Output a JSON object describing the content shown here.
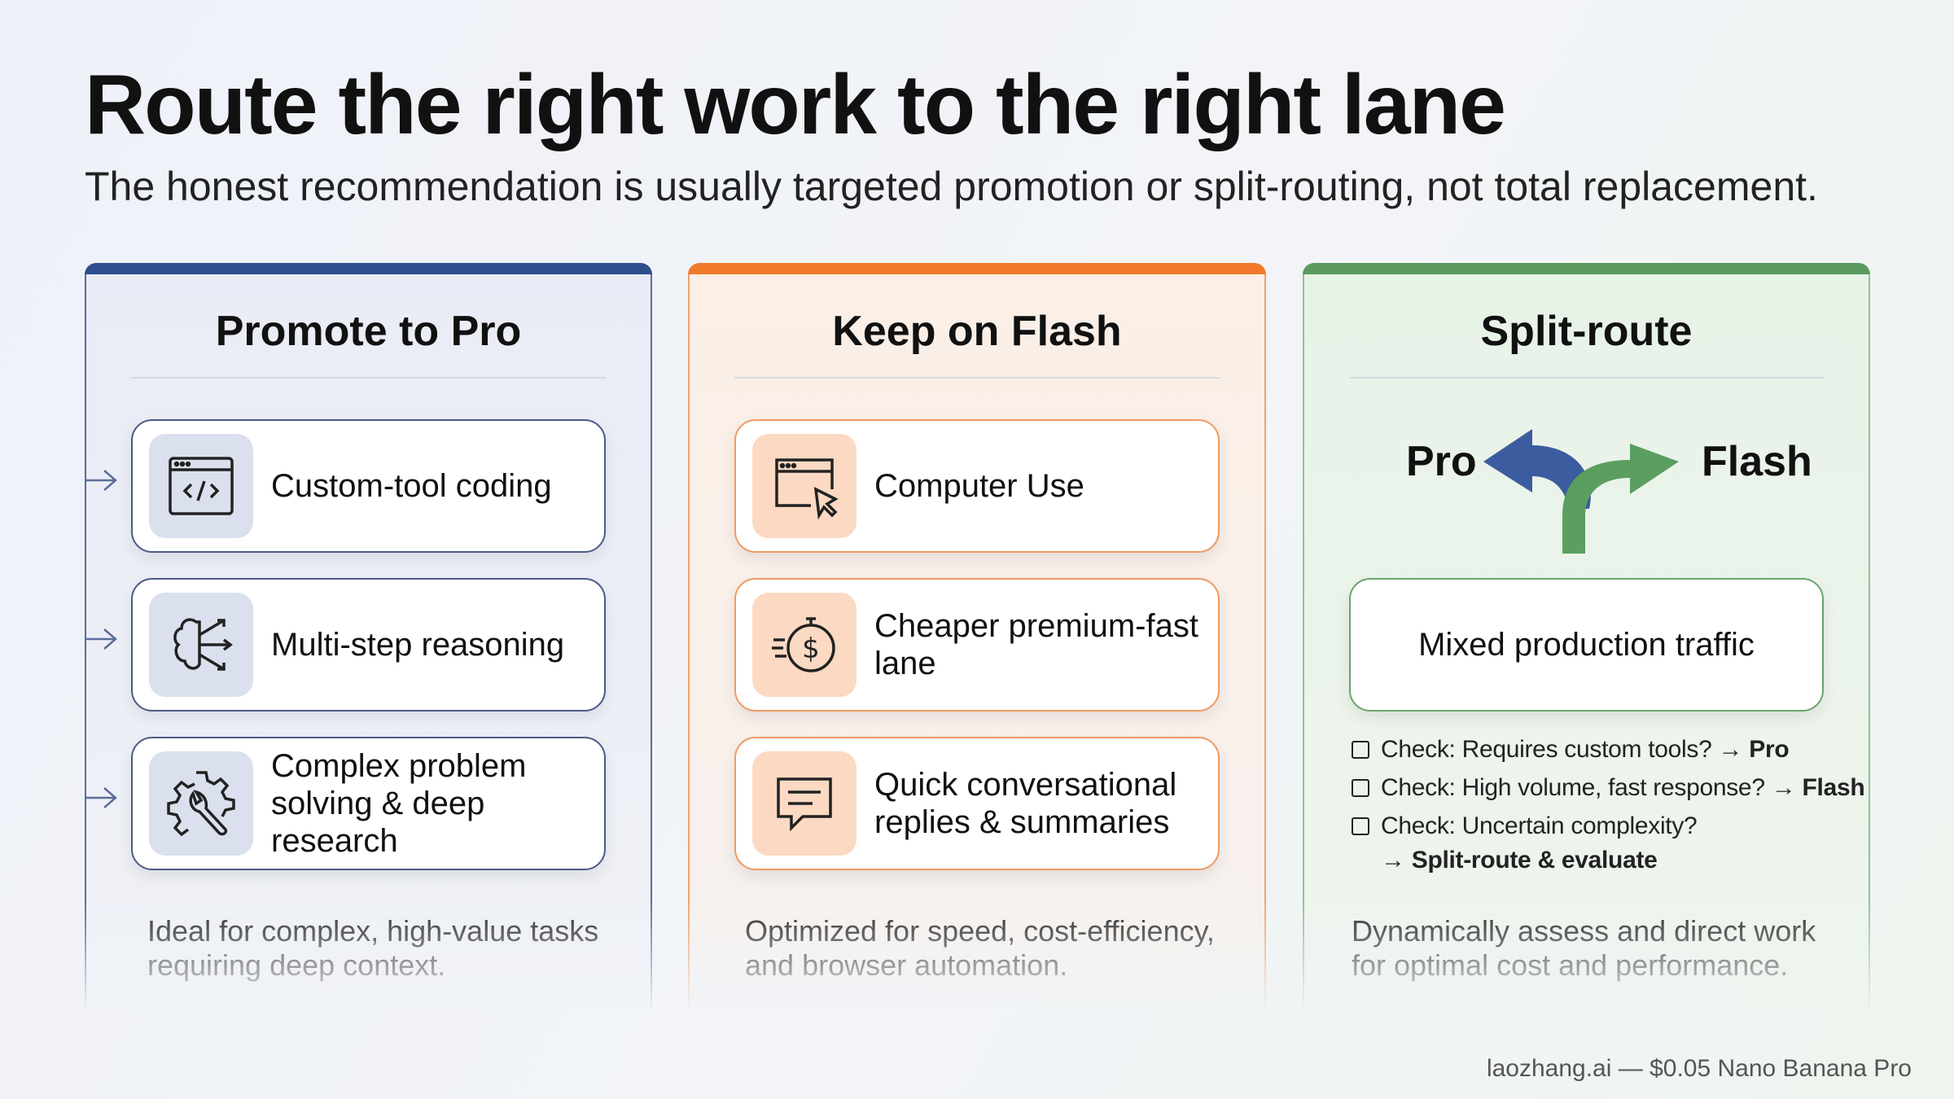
{
  "title": "Route the right work to the right lane",
  "subtitle": "The honest recommendation is usually targeted promotion or split-routing, not total replacement.",
  "columns": [
    {
      "title": "Promote to Pro",
      "color": "#2d4f8e",
      "items": [
        {
          "icon": "code-window-icon",
          "label": "Custom-tool coding"
        },
        {
          "icon": "brain-arrows-icon",
          "label": "Multi-step reasoning"
        },
        {
          "icon": "gear-wrench-icon",
          "label": "Complex problem solving & deep research"
        }
      ],
      "description": "Ideal for complex, high-value tasks requiring deep context."
    },
    {
      "title": "Keep on Flash",
      "color": "#f07a2a",
      "items": [
        {
          "icon": "browser-cursor-icon",
          "label": "Computer Use"
        },
        {
          "icon": "fast-dollar-stopwatch-icon",
          "label": "Cheaper premium-fast lane"
        },
        {
          "icon": "chat-bubble-icon",
          "label": "Quick conversational replies & summaries"
        }
      ],
      "description": "Optimized for speed, cost-efficiency, and browser automation."
    },
    {
      "title": "Split-route",
      "color": "#5a9a5e",
      "left_label": "Pro",
      "right_label": "Flash",
      "box": "Mixed production traffic",
      "checks": [
        {
          "text": "Check: Requires custom tools?",
          "arrow": "→",
          "target": "Pro"
        },
        {
          "text": "Check: High volume, fast response?",
          "arrow": "→",
          "target": "Flash"
        },
        {
          "text": "Check: Uncertain complexity?",
          "arrow": "→",
          "target": "Split-route & evaluate"
        }
      ],
      "description": "Dynamically assess and direct work for optimal cost and performance."
    }
  ],
  "footer": "laozhang.ai — $0.05 Nano Banana Pro"
}
